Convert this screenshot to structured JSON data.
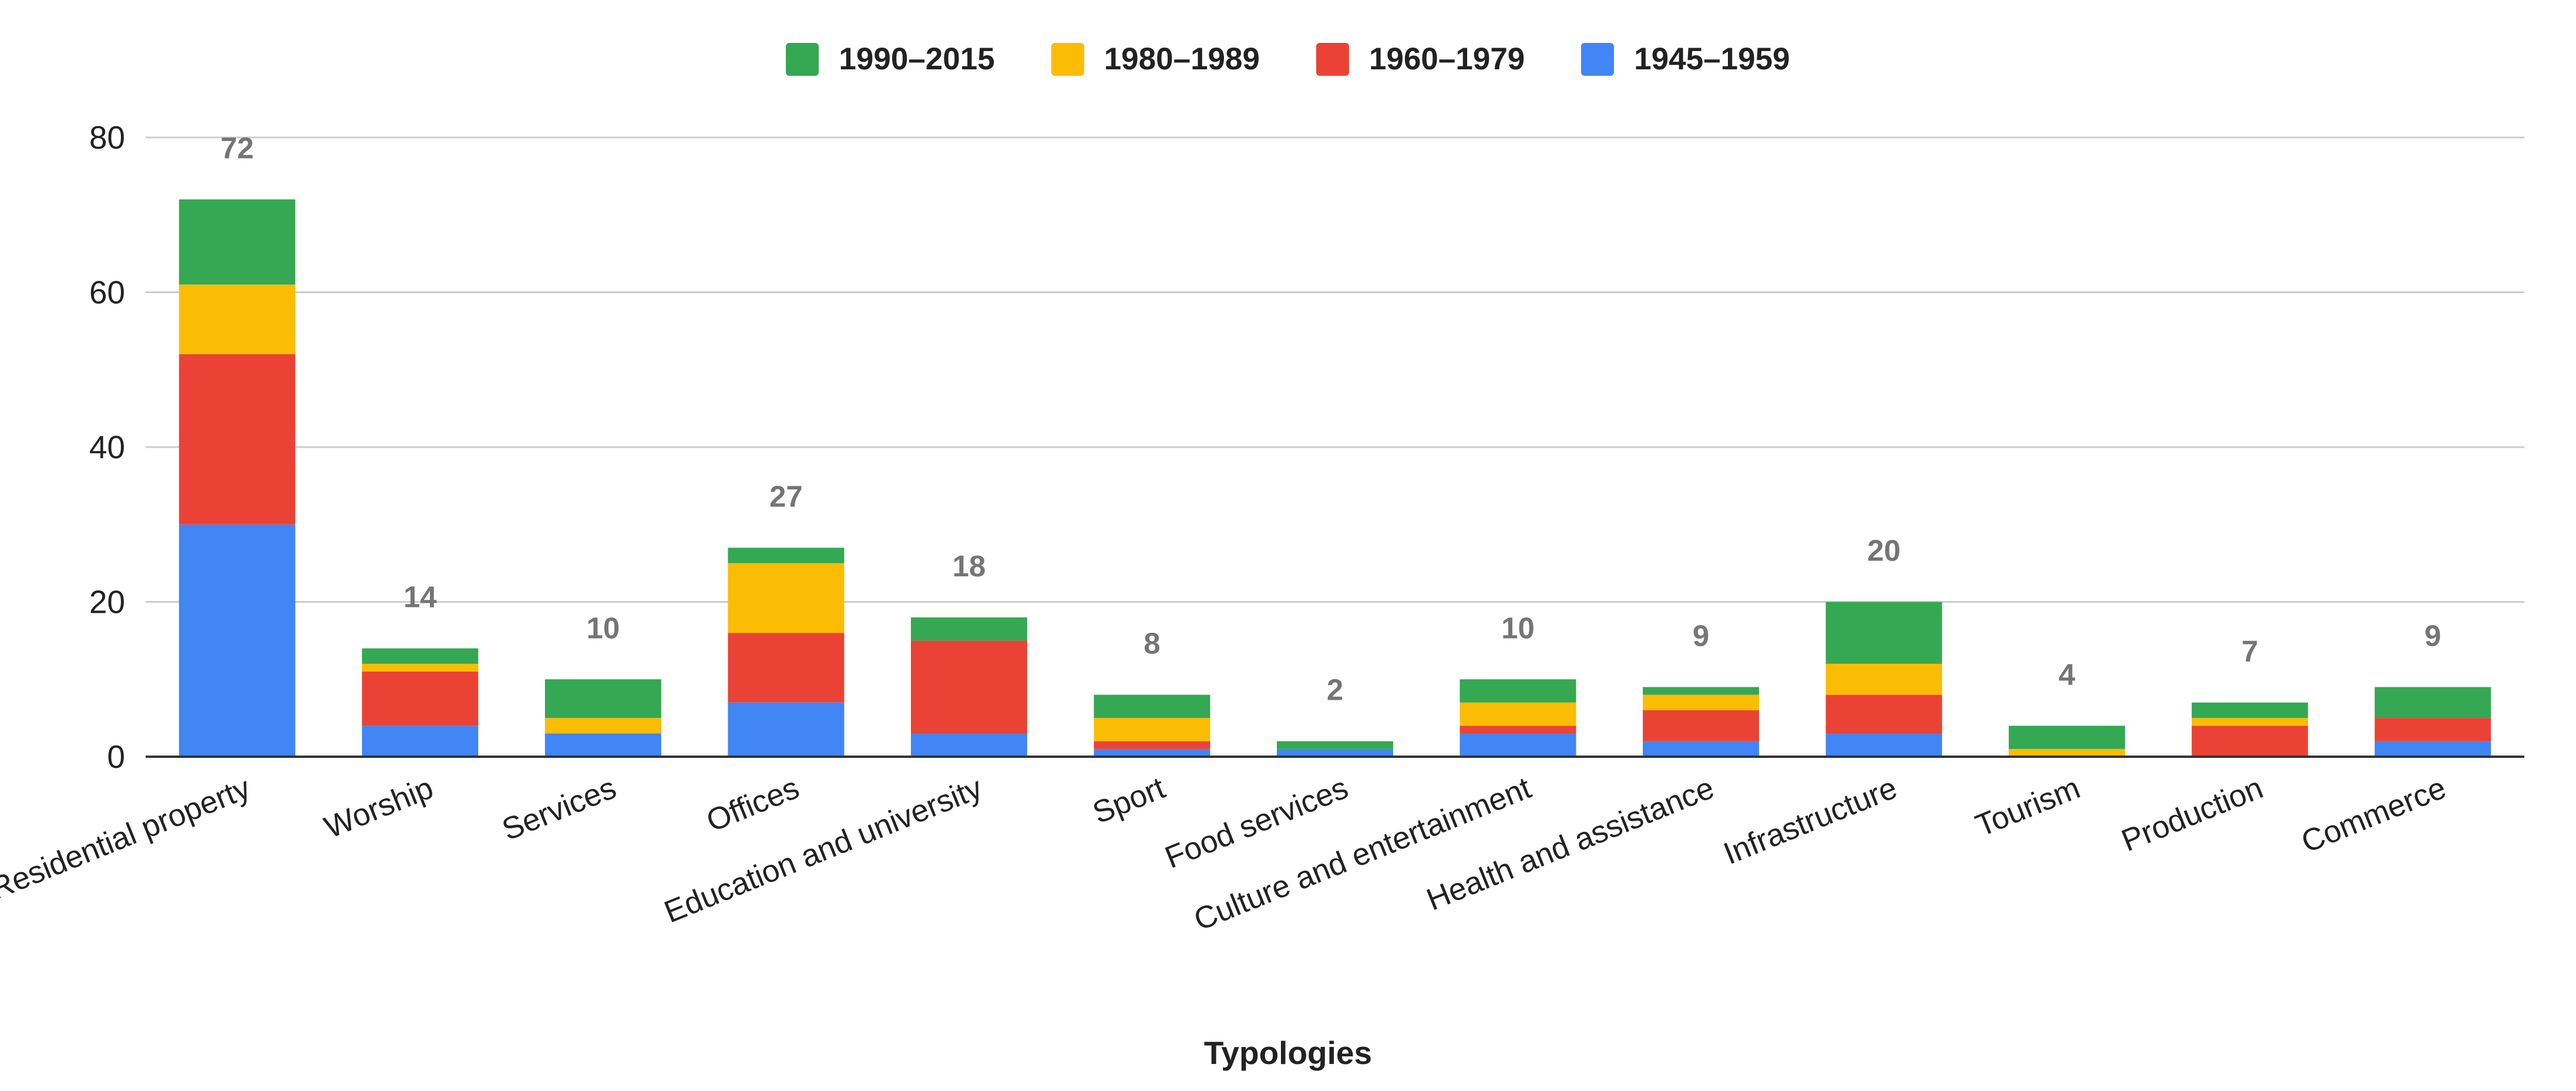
{
  "chart_data": {
    "type": "bar",
    "stacked": true,
    "title": "",
    "xlabel": "Typologies",
    "ylabel": "",
    "ylim": [
      0,
      80
    ],
    "yticks": [
      0,
      20,
      40,
      60,
      80
    ],
    "grid": true,
    "legend_position": "top-center",
    "categories": [
      "Residential property",
      "Worship",
      "Services",
      "Offices",
      "Education and university",
      "Sport",
      "Food services",
      "Culture and entertainment",
      "Health and assistance",
      "Infrastructure",
      "Tourism",
      "Production",
      "Commerce"
    ],
    "series": [
      {
        "name": "1945–1959",
        "color": "#4285F4",
        "values": [
          30,
          4,
          3,
          7,
          3,
          1,
          1,
          3,
          2,
          3,
          0,
          0,
          2
        ]
      },
      {
        "name": "1960–1979",
        "color": "#EA4335",
        "values": [
          22,
          7,
          0,
          9,
          12,
          1,
          0,
          1,
          4,
          5,
          0,
          4,
          3
        ]
      },
      {
        "name": "1980–1989",
        "color": "#FBBC04",
        "values": [
          9,
          1,
          2,
          9,
          0,
          3,
          0,
          3,
          2,
          4,
          1,
          1,
          0
        ]
      },
      {
        "name": "1990–2015",
        "color": "#34A853",
        "values": [
          11,
          2,
          5,
          2,
          3,
          3,
          1,
          3,
          1,
          8,
          3,
          2,
          4
        ]
      }
    ],
    "legend_order": [
      "1990–2015",
      "1980–1989",
      "1960–1979",
      "1945–1959"
    ],
    "totals": [
      "72",
      "14",
      "10",
      "27",
      "18",
      "8",
      "2",
      "10",
      "9",
      "20",
      "4",
      "7",
      "9"
    ]
  }
}
